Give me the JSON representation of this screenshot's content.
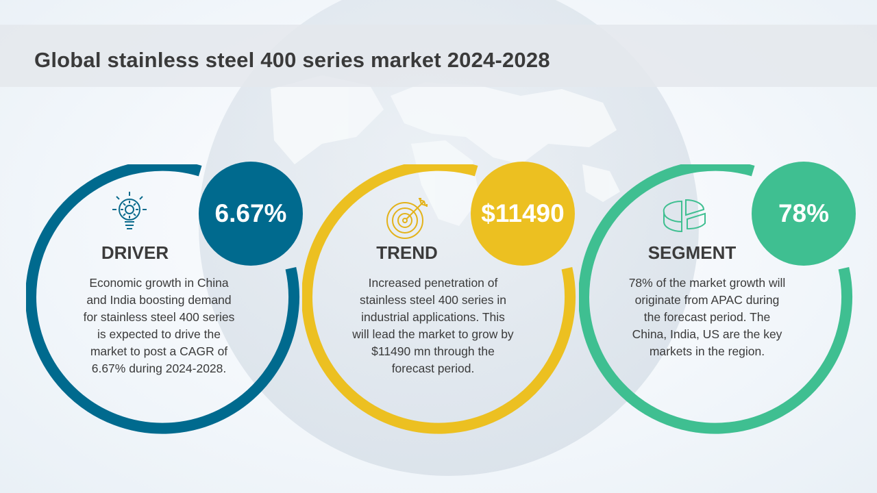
{
  "title": "Global stainless steel 400 series market 2024-2028",
  "colors": {
    "driver": "#006a8e",
    "trend": "#ecc021",
    "segment": "#3fbf91"
  },
  "cards": [
    {
      "label": "DRIVER",
      "badge": "6.67%",
      "icon": "lightbulb-gear-icon",
      "description": "Economic growth in China and India boosting demand for stainless steel 400 series is expected to drive the market to post a CAGR of 6.67% during 2024-2028."
    },
    {
      "label": "TREND",
      "badge": "$11490",
      "icon": "target-arrow-icon",
      "description": "Increased penetration of stainless steel 400 series in industrial applications. This will lead the market to grow by $11490 mn through the forecast period."
    },
    {
      "label": "SEGMENT",
      "badge": "78%",
      "icon": "pie-chart-icon",
      "description": "78% of the market growth will originate from APAC during the forecast period. The China, India, US are the key markets in the region."
    }
  ]
}
